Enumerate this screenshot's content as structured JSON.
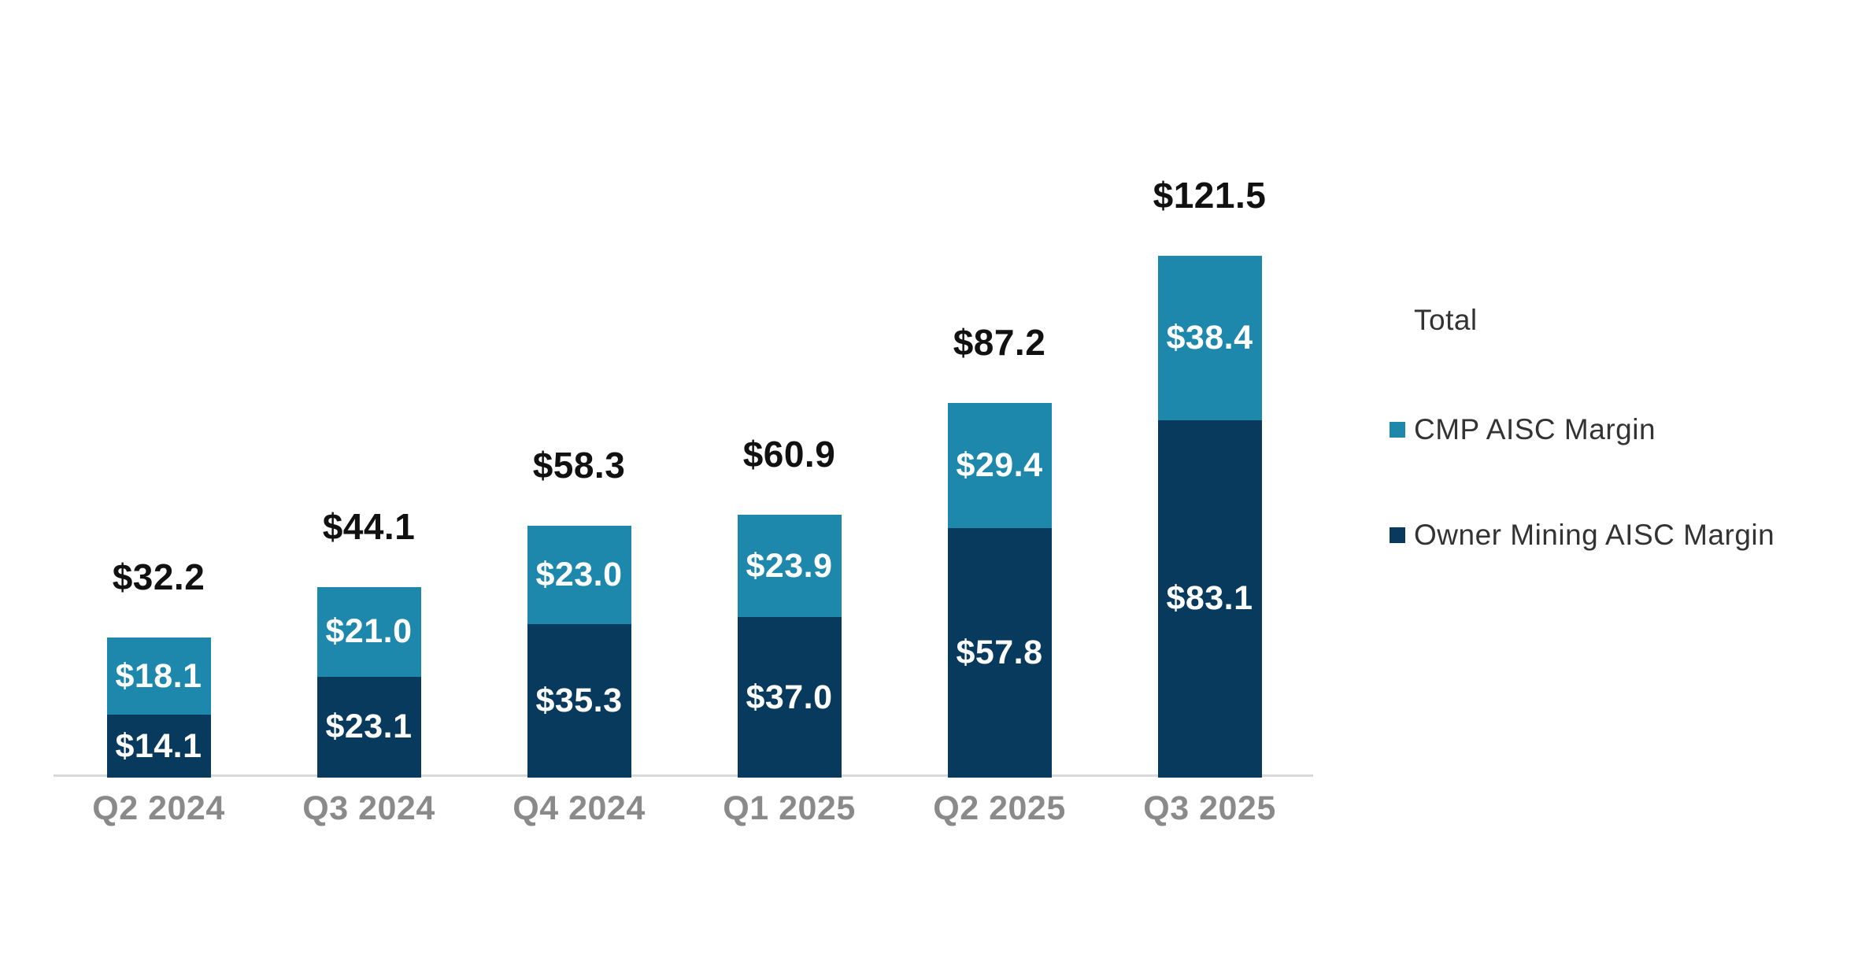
{
  "chart_data": {
    "type": "bar",
    "stacked": true,
    "title": "",
    "xlabel": "",
    "ylabel": "",
    "grid": false,
    "legend_position": "right",
    "ylim": [
      0,
      135
    ],
    "categories": [
      "Q2 2024",
      "Q3 2024",
      "Q4 2024",
      "Q1 2025",
      "Q2 2025",
      "Q3 2025"
    ],
    "series": [
      {
        "name": "Owner Mining AISC Margin",
        "color": "#083a5e",
        "values": [
          14.1,
          23.1,
          35.3,
          37.0,
          57.8,
          83.1
        ],
        "labels": [
          "$14.1",
          "$23.1",
          "$35.3",
          "$37.0",
          "$57.8",
          "$83.1"
        ]
      },
      {
        "name": "CMP AISC Margin",
        "color": "#1d87ac",
        "values": [
          18.1,
          21.0,
          23.0,
          23.9,
          29.4,
          38.4
        ],
        "labels": [
          "$18.1",
          "$21.0",
          "$23.0",
          "$23.9",
          "$29.4",
          "$38.4"
        ]
      }
    ],
    "totals": {
      "name": "Total",
      "values": [
        32.2,
        44.1,
        58.3,
        60.9,
        87.2,
        121.5
      ],
      "labels": [
        "$32.2",
        "$44.1",
        "$58.3",
        "$60.9",
        "$87.2",
        "$121.5"
      ]
    }
  },
  "legend": {
    "items": [
      {
        "label": "Total",
        "swatch": "none"
      },
      {
        "label": "CMP AISC Margin",
        "swatch": "#1d87ac"
      },
      {
        "label": "Owner Mining AISC Margin",
        "swatch": "#083a5e"
      }
    ]
  },
  "colors": {
    "cmp_blue": "#1d87ac",
    "owner_navy": "#083a5e",
    "axis_line": "#d9d9d9",
    "total_label": "#111111",
    "tick_label": "#8a8a8a",
    "legend_text": "#333333",
    "background": "#ffffff"
  }
}
